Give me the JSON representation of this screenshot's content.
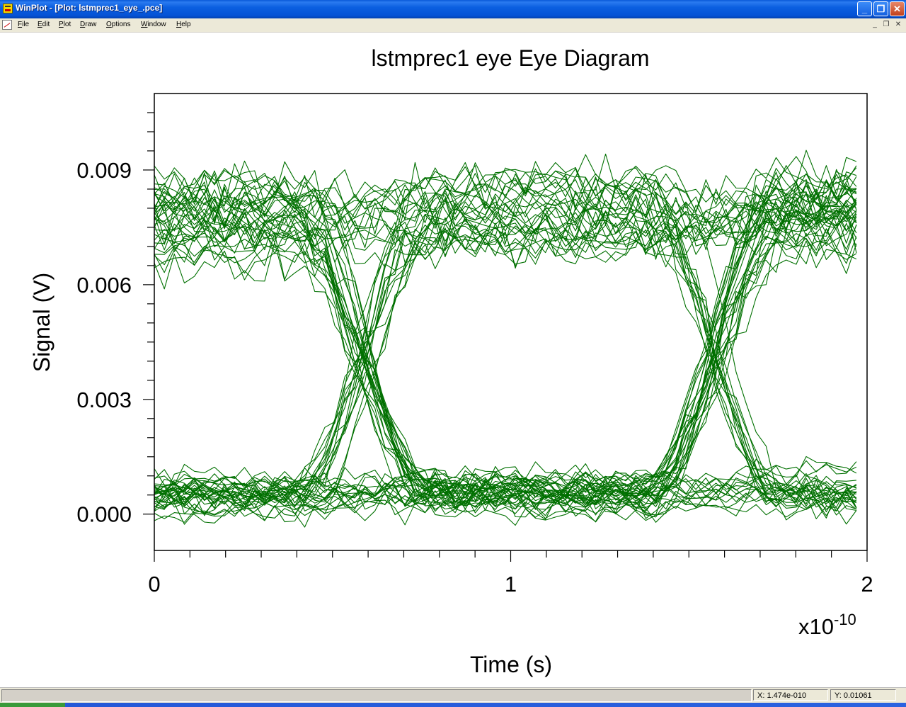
{
  "window": {
    "title": "WinPlot - [Plot: lstmprec1_eye_.pce]",
    "controls": {
      "minimize": "_",
      "maximize": "❐",
      "close": "✕"
    }
  },
  "menu": {
    "items": [
      "File",
      "Edit",
      "Plot",
      "Draw",
      "Options",
      "Window",
      "Help"
    ],
    "mdi_controls": {
      "minimize": "_",
      "restore": "❐",
      "close": "✕"
    }
  },
  "chart_data": {
    "type": "line",
    "title": "lstmprec1 eye  Eye Diagram",
    "xlabel": "Time (s)",
    "ylabel": "Signal (V)",
    "x_exponent_base": "x10",
    "x_exponent_power": "-10",
    "xlim": [
      0,
      2
    ],
    "ylim": [
      -0.00095,
      0.011
    ],
    "x_ticks": [
      0,
      1,
      2
    ],
    "x_tick_labels": [
      "0",
      "1",
      "2"
    ],
    "y_ticks": [
      0.0,
      0.003,
      0.006,
      0.009
    ],
    "y_tick_labels": [
      "0.000",
      "0.003",
      "0.006",
      "0.009"
    ],
    "x_minor_step": 0.1,
    "y_minor_step": 0.0005,
    "unit_interval": 1.0,
    "crossings": [
      0.58,
      1.58
    ],
    "trace_end": 1.97,
    "levels": {
      "low_mean": 0.0005,
      "high_mean": 0.0078,
      "crossing_level": 0.003
    },
    "trace_count": 70,
    "line_color": "#007000",
    "grid": false,
    "legend": "none"
  },
  "status": {
    "x_readout": "X: 1.474e-010",
    "y_readout": "Y: 0.01061"
  }
}
